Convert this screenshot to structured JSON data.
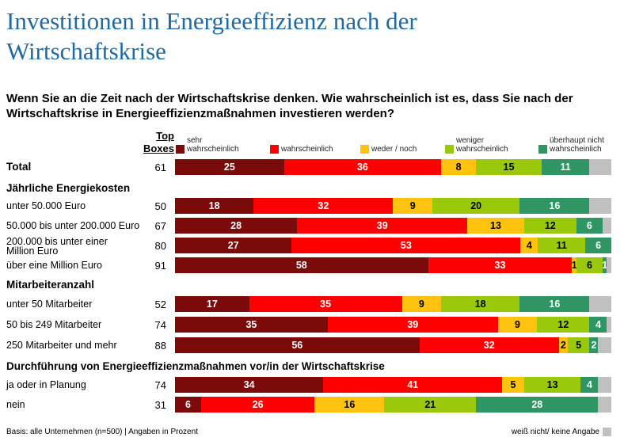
{
  "title": "Investitionen in Energieeffizienz nach der Wirtschaftskrise",
  "question": "Wenn Sie an die Zeit nach der Wirtschaftskrise denken. Wie wahrscheinlich ist es, dass Sie nach der Wirtschaftskrise in Energieeffizienzmaßnahmen investieren werden?",
  "top_boxes_label_1": "Top",
  "top_boxes_label_2": "Boxes",
  "footer": "Basis: alle Unternehmen (n=500) | Angaben in Prozent",
  "footer_right": "weiß nicht/ keine Angabe",
  "chart_data": {
    "type": "stacked-bar-horizontal",
    "unit": "%",
    "legend_placement": "top",
    "series": [
      {
        "name": "sehr wahrscheinlich",
        "color": "#7b0a0a",
        "label_color": "#ffffff"
      },
      {
        "name": "wahrscheinlich",
        "color": "#ff0000",
        "label_color": "#ffffff"
      },
      {
        "name": "weder / noch",
        "color": "#ffc20e",
        "label_color": "#000000"
      },
      {
        "name": "weniger wahrscheinlich",
        "color": "#99c90a",
        "label_color": "#000000"
      },
      {
        "name": "überhaupt nicht wahrscheinlich",
        "color": "#2e9563",
        "label_color": "#ffffff"
      }
    ],
    "remainder": {
      "name": "weiß nicht/ keine Angabe",
      "color": "#c0c0c0"
    },
    "rows": [
      {
        "kind": "row",
        "bold": true,
        "label": "Total",
        "top_boxes": 61,
        "values": [
          25,
          36,
          8,
          15,
          11
        ]
      },
      {
        "kind": "heading",
        "label": "Jährliche Energiekosten"
      },
      {
        "kind": "row",
        "label": "unter 50.000 Euro",
        "top_boxes": 50,
        "values": [
          18,
          32,
          9,
          20,
          16
        ]
      },
      {
        "kind": "row",
        "label": "50.000 bis unter 200.000 Euro",
        "top_boxes": 67,
        "values": [
          28,
          39,
          13,
          12,
          6
        ]
      },
      {
        "kind": "row",
        "label": "200.000 bis unter einer Million Euro",
        "top_boxes": 80,
        "values": [
          27,
          53,
          4,
          11,
          6
        ]
      },
      {
        "kind": "row",
        "label": "über eine Million Euro",
        "top_boxes": 91,
        "values": [
          58,
          33,
          1,
          6,
          1
        ]
      },
      {
        "kind": "heading",
        "label": "Mitarbeiteranzahl"
      },
      {
        "kind": "row",
        "label": "unter 50 Mitarbeiter",
        "top_boxes": 52,
        "values": [
          17,
          35,
          9,
          18,
          16
        ]
      },
      {
        "kind": "row",
        "label": "50 bis 249 Mitarbeiter",
        "top_boxes": 74,
        "values": [
          35,
          39,
          9,
          12,
          4
        ]
      },
      {
        "kind": "row",
        "label": "250 Mitarbeiter und mehr",
        "top_boxes": 88,
        "values": [
          56,
          32,
          2,
          5,
          2
        ]
      },
      {
        "kind": "heading",
        "label": "Durchführung von Energieeffizienzmaßnahmen vor/in der Wirtschaftskrise"
      },
      {
        "kind": "row",
        "label": "ja oder in Planung",
        "top_boxes": 74,
        "values": [
          34,
          41,
          5,
          13,
          4
        ]
      },
      {
        "kind": "row",
        "label": "nein",
        "top_boxes": 31,
        "values": [
          6,
          26,
          16,
          21,
          28
        ]
      }
    ]
  }
}
